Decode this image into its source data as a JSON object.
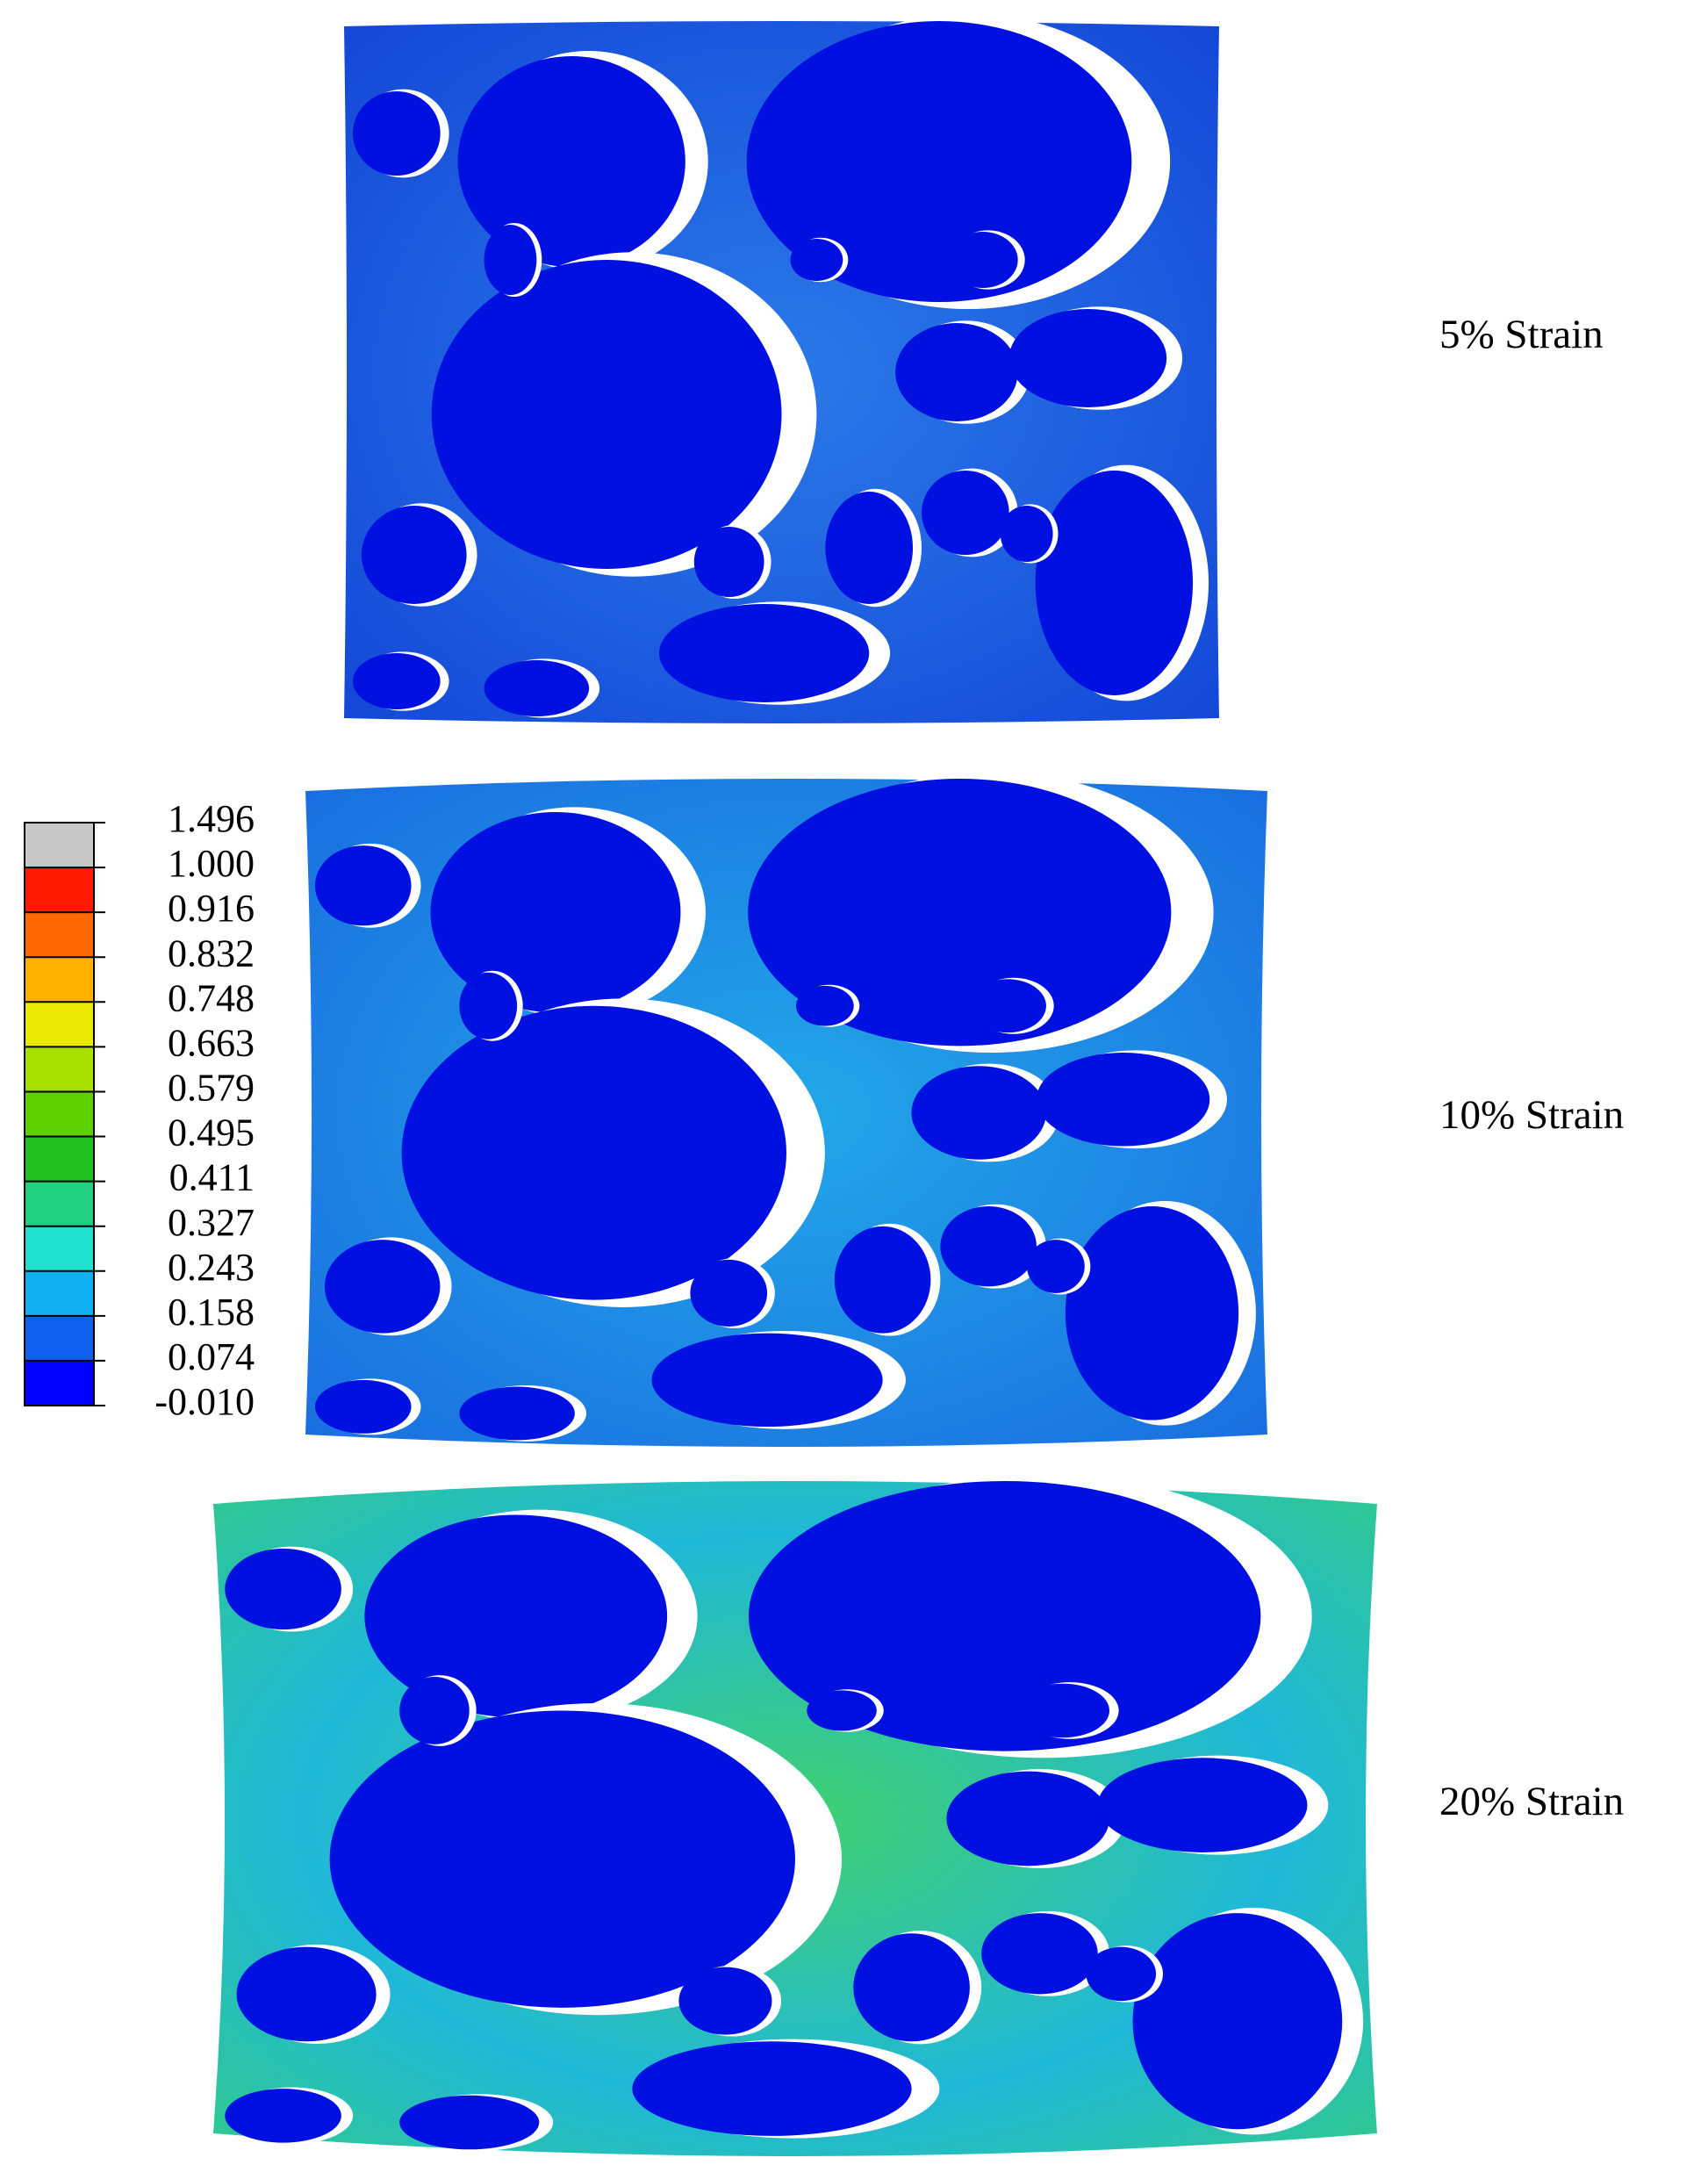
{
  "panels": [
    {
      "label": "5% Strain"
    },
    {
      "label": "10% Strain"
    },
    {
      "label": "20% Strain"
    }
  ],
  "colorbar": {
    "ticks": [
      "1.496",
      "1.000",
      "0.916",
      "0.832",
      "0.748",
      "0.663",
      "0.579",
      "0.495",
      "0.411",
      "0.327",
      "0.243",
      "0.158",
      "0.074",
      "-0.010"
    ]
  }
}
